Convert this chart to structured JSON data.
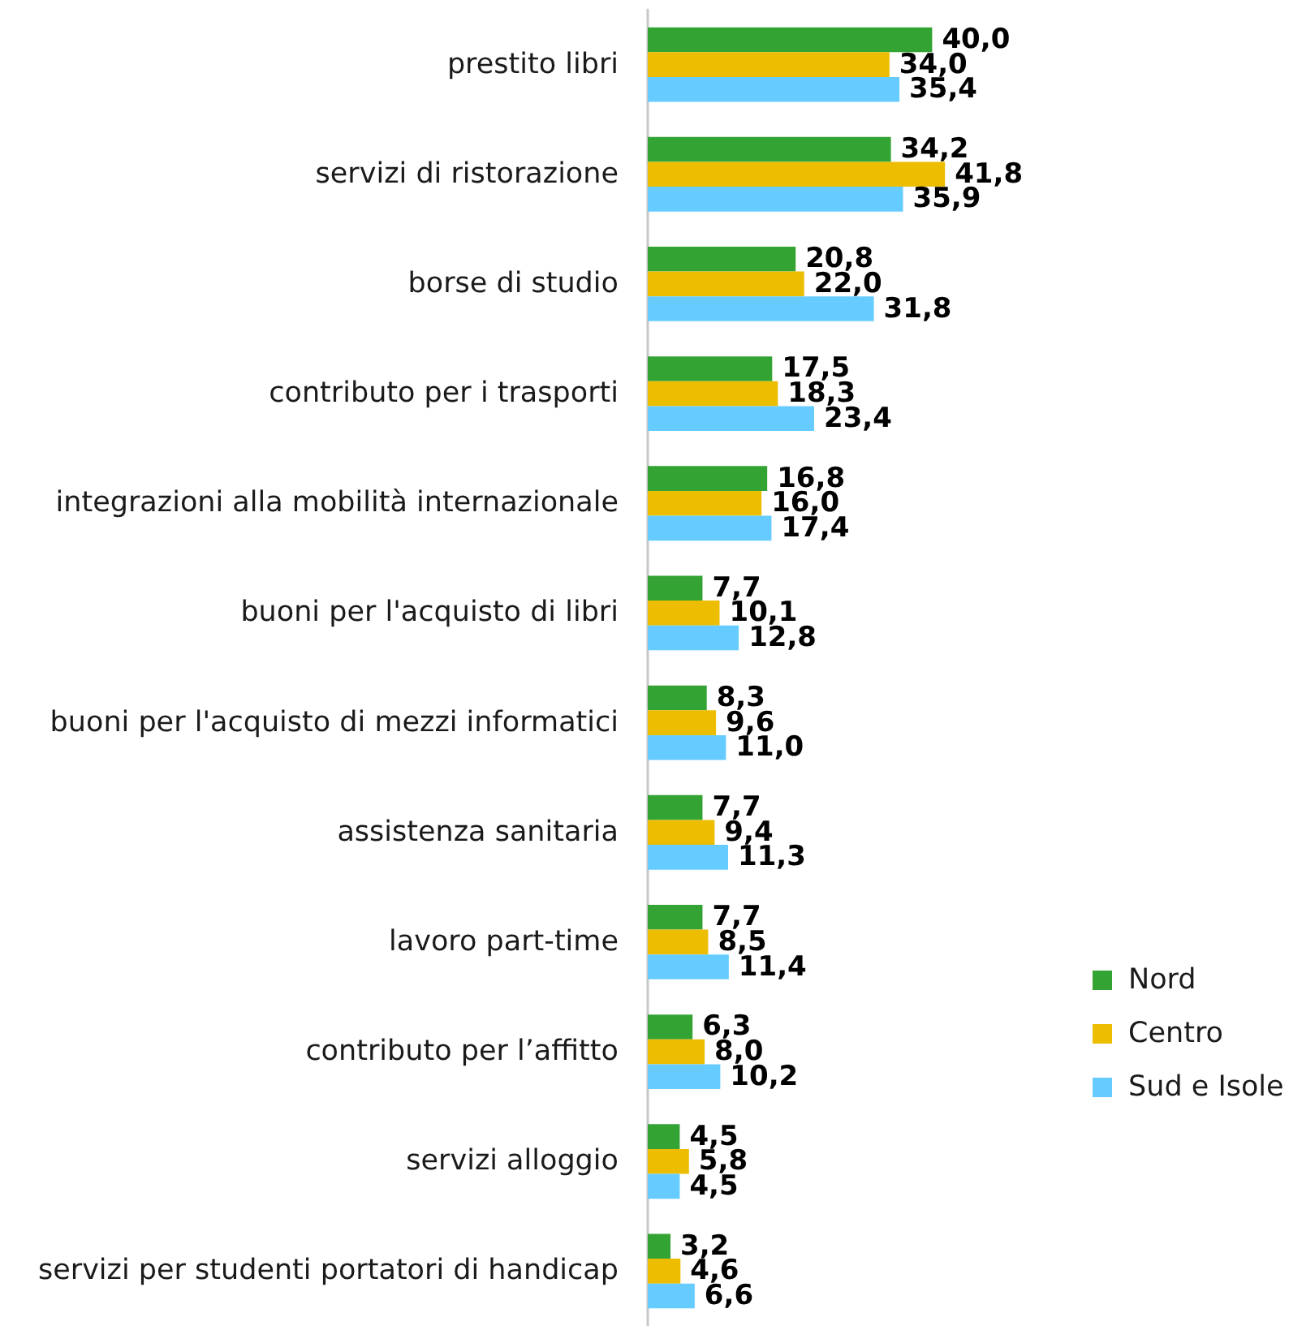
{
  "chart_data": {
    "type": "bar",
    "orientation": "horizontal",
    "legend": "right",
    "tick_labels": "y",
    "categories": [
      "prestito libri",
      "servizi di ristorazione",
      "borse di studio",
      "contributo per i trasporti",
      "integrazioni alla mobilità internazionale",
      "buoni per l'acquisto di libri",
      "buoni per l'acquisto di mezzi informatici",
      "assistenza sanitaria",
      "lavoro part-time",
      "contributo per l’affitto",
      "servizi alloggio",
      "servizi per studenti portatori di handicap"
    ],
    "series": [
      {
        "name": "Nord",
        "color": "#33a333",
        "values": [
          40.0,
          34.2,
          20.8,
          17.5,
          16.8,
          7.7,
          8.3,
          7.7,
          7.7,
          6.3,
          4.5,
          3.2
        ],
        "value_labels": [
          "40,0",
          "34,2",
          "20,8",
          "17,5",
          "16,8",
          "7,7",
          "8,3",
          "7,7",
          "7,7",
          "6,3",
          "4,5",
          "3,2"
        ]
      },
      {
        "name": "Centro",
        "color": "#ecbd00",
        "values": [
          34.0,
          41.8,
          22.0,
          18.3,
          16.0,
          10.1,
          9.6,
          9.4,
          8.5,
          8.0,
          5.8,
          4.6
        ],
        "value_labels": [
          "34,0",
          "41,8",
          "22,0",
          "18,3",
          "16,0",
          "10,1",
          "9,6",
          "9,4",
          "8,5",
          "8,0",
          "5,8",
          "4,6"
        ]
      },
      {
        "name": "Sud e Isole",
        "color": "#66ccff",
        "values": [
          35.4,
          35.9,
          31.8,
          23.4,
          17.4,
          12.8,
          11.0,
          11.3,
          11.4,
          10.2,
          4.5,
          6.6
        ],
        "value_labels": [
          "35,4",
          "35,9",
          "31,8",
          "23,4",
          "17,4",
          "12,8",
          "11,0",
          "11,3",
          "11,4",
          "10,2",
          "4,5",
          "6,6"
        ]
      }
    ]
  }
}
